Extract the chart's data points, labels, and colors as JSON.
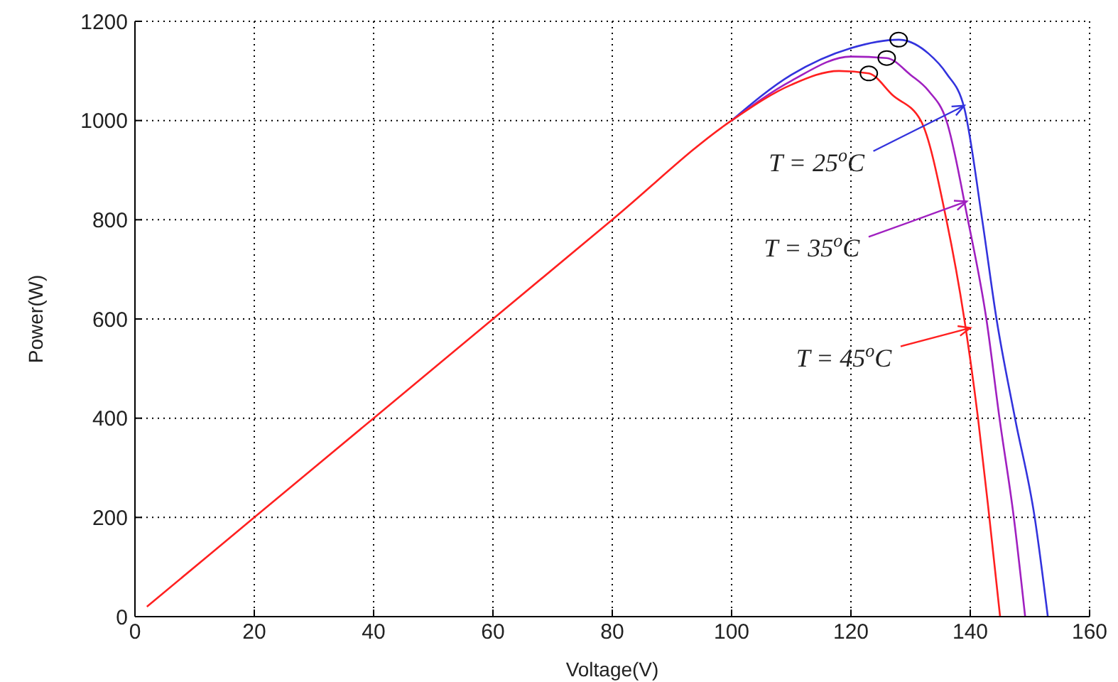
{
  "chart_data": {
    "type": "line",
    "xlabel": "Voltage(V)",
    "ylabel": "Power(W)",
    "xlim": [
      0,
      160
    ],
    "xticks": [
      0,
      20,
      40,
      60,
      80,
      100,
      120,
      140,
      160
    ],
    "ylim": [
      0,
      1200
    ],
    "yticks": [
      0,
      200,
      400,
      600,
      800,
      1000,
      1200
    ],
    "grid": true,
    "legend": false,
    "line_style": "solid",
    "marker": "none",
    "series": [
      {
        "color": "#3333dd",
        "x": [
          100,
          110,
          120,
          128,
          133,
          136,
          139,
          142,
          144.4,
          147.5,
          150.8,
          153
        ],
        "values": [
          1000,
          1092,
          1146,
          1163,
          1135,
          1095,
          1025,
          800,
          600,
          400,
          200,
          0
        ]
      },
      {
        "color": "#a020c0",
        "x": [
          100,
          110,
          120,
          126,
          130,
          133,
          136,
          139.6,
          142.7,
          144.9,
          147.3,
          149.2
        ],
        "values": [
          1000,
          1080,
          1129,
          1126,
          1092,
          1060,
          1000,
          800,
          600,
          400,
          200,
          0
        ]
      },
      {
        "color": "#ff2020",
        "x": [
          2,
          20,
          40,
          60,
          80,
          100,
          110,
          118,
          123,
          127,
          131.7,
          136,
          139,
          141.3,
          143.2,
          145
        ],
        "values": [
          20,
          200,
          400,
          600,
          800,
          1000,
          1072,
          1100,
          1095,
          1051,
          1000,
          800,
          600,
          400,
          200,
          0
        ]
      },
      {
        "type": "scatter",
        "marker": "circle",
        "color": "#000000",
        "x": [
          128,
          126,
          123
        ],
        "values": [
          1163,
          1126,
          1095
        ]
      }
    ],
    "annotations": [
      {
        "text": "T = 25$^{o}$C",
        "x": 139,
        "y": 1030
      },
      {
        "text": "T = 35$^{o}$C",
        "x": 139.4,
        "y": 837
      },
      {
        "text": "T = 45$^{o}$C",
        "x": 140,
        "y": 582
      }
    ]
  }
}
